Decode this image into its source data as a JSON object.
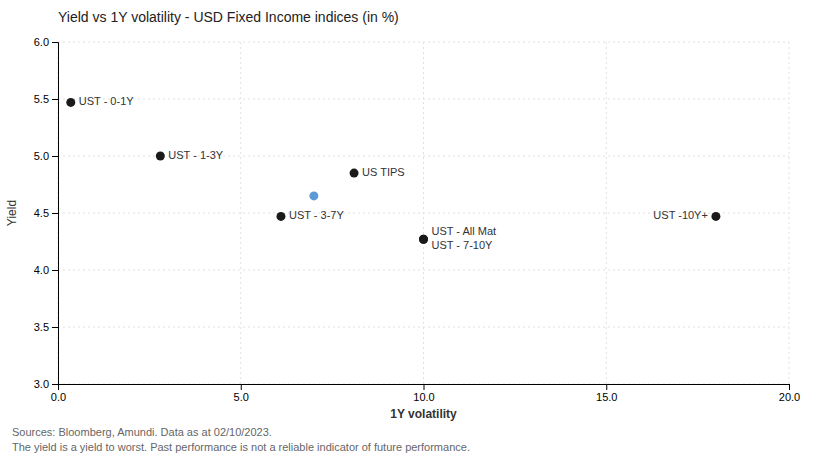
{
  "chart_data": {
    "type": "scatter",
    "title": "Yield vs 1Y volatility - USD Fixed Income indices (in %)",
    "x_label": "1Y volatility",
    "y_label": "Yield",
    "xlim": [
      0.0,
      20.0
    ],
    "ylim": [
      3.0,
      6.0
    ],
    "xticks": [
      {
        "value": 0.0,
        "label": "0.0"
      },
      {
        "value": 5.0,
        "label": "5.0"
      },
      {
        "value": 10.0,
        "label": "10.0"
      },
      {
        "value": 15.0,
        "label": "15.0"
      },
      {
        "value": 20.0,
        "label": "20.0"
      }
    ],
    "yticks": [
      {
        "value": 3.0,
        "label": "3.0"
      },
      3.5,
      {
        "value": 4.0,
        "label": "4.0"
      },
      4.5,
      {
        "value": 5.0,
        "label": "5.0"
      },
      5.5,
      {
        "value": 6.0,
        "label": "6.0"
      }
    ],
    "grid": true,
    "series": [
      {
        "color": "#1a1a1a",
        "x": [
          0.35,
          2.8,
          6.1,
          8.1,
          10.0,
          10.0,
          18.0
        ],
        "values": [
          5.47,
          5.0,
          4.47,
          4.85,
          4.27,
          4.27,
          4.47
        ]
      },
      {
        "color": "#5b9bd5",
        "x": [
          7.0
        ],
        "values": [
          4.65
        ]
      }
    ],
    "annotations": [
      {
        "text": "UST - 0-1Y",
        "x": 0.35,
        "y": 5.47
      },
      {
        "text": "UST - 1-3Y",
        "x": 2.8,
        "y": 5.0
      },
      {
        "text": "UST - 3-7Y",
        "x": 6.1,
        "y": 4.47
      },
      {
        "text": "US TIPS",
        "x": 8.1,
        "y": 4.85
      },
      {
        "text": "UST - All Mat",
        "x": 10.0,
        "y": 4.27
      },
      {
        "text": "UST - 7-10Y",
        "x": 10.0,
        "y": 4.27
      },
      {
        "text": "UST -10Y+",
        "x": 18.0,
        "y": 4.47
      }
    ],
    "footnotes": [
      "Sources: Bloomberg, Amundi. Data as at 02/10/2023.",
      "The yield is a yield to worst. Past performance is not a reliable indicator of future performance."
    ]
  }
}
